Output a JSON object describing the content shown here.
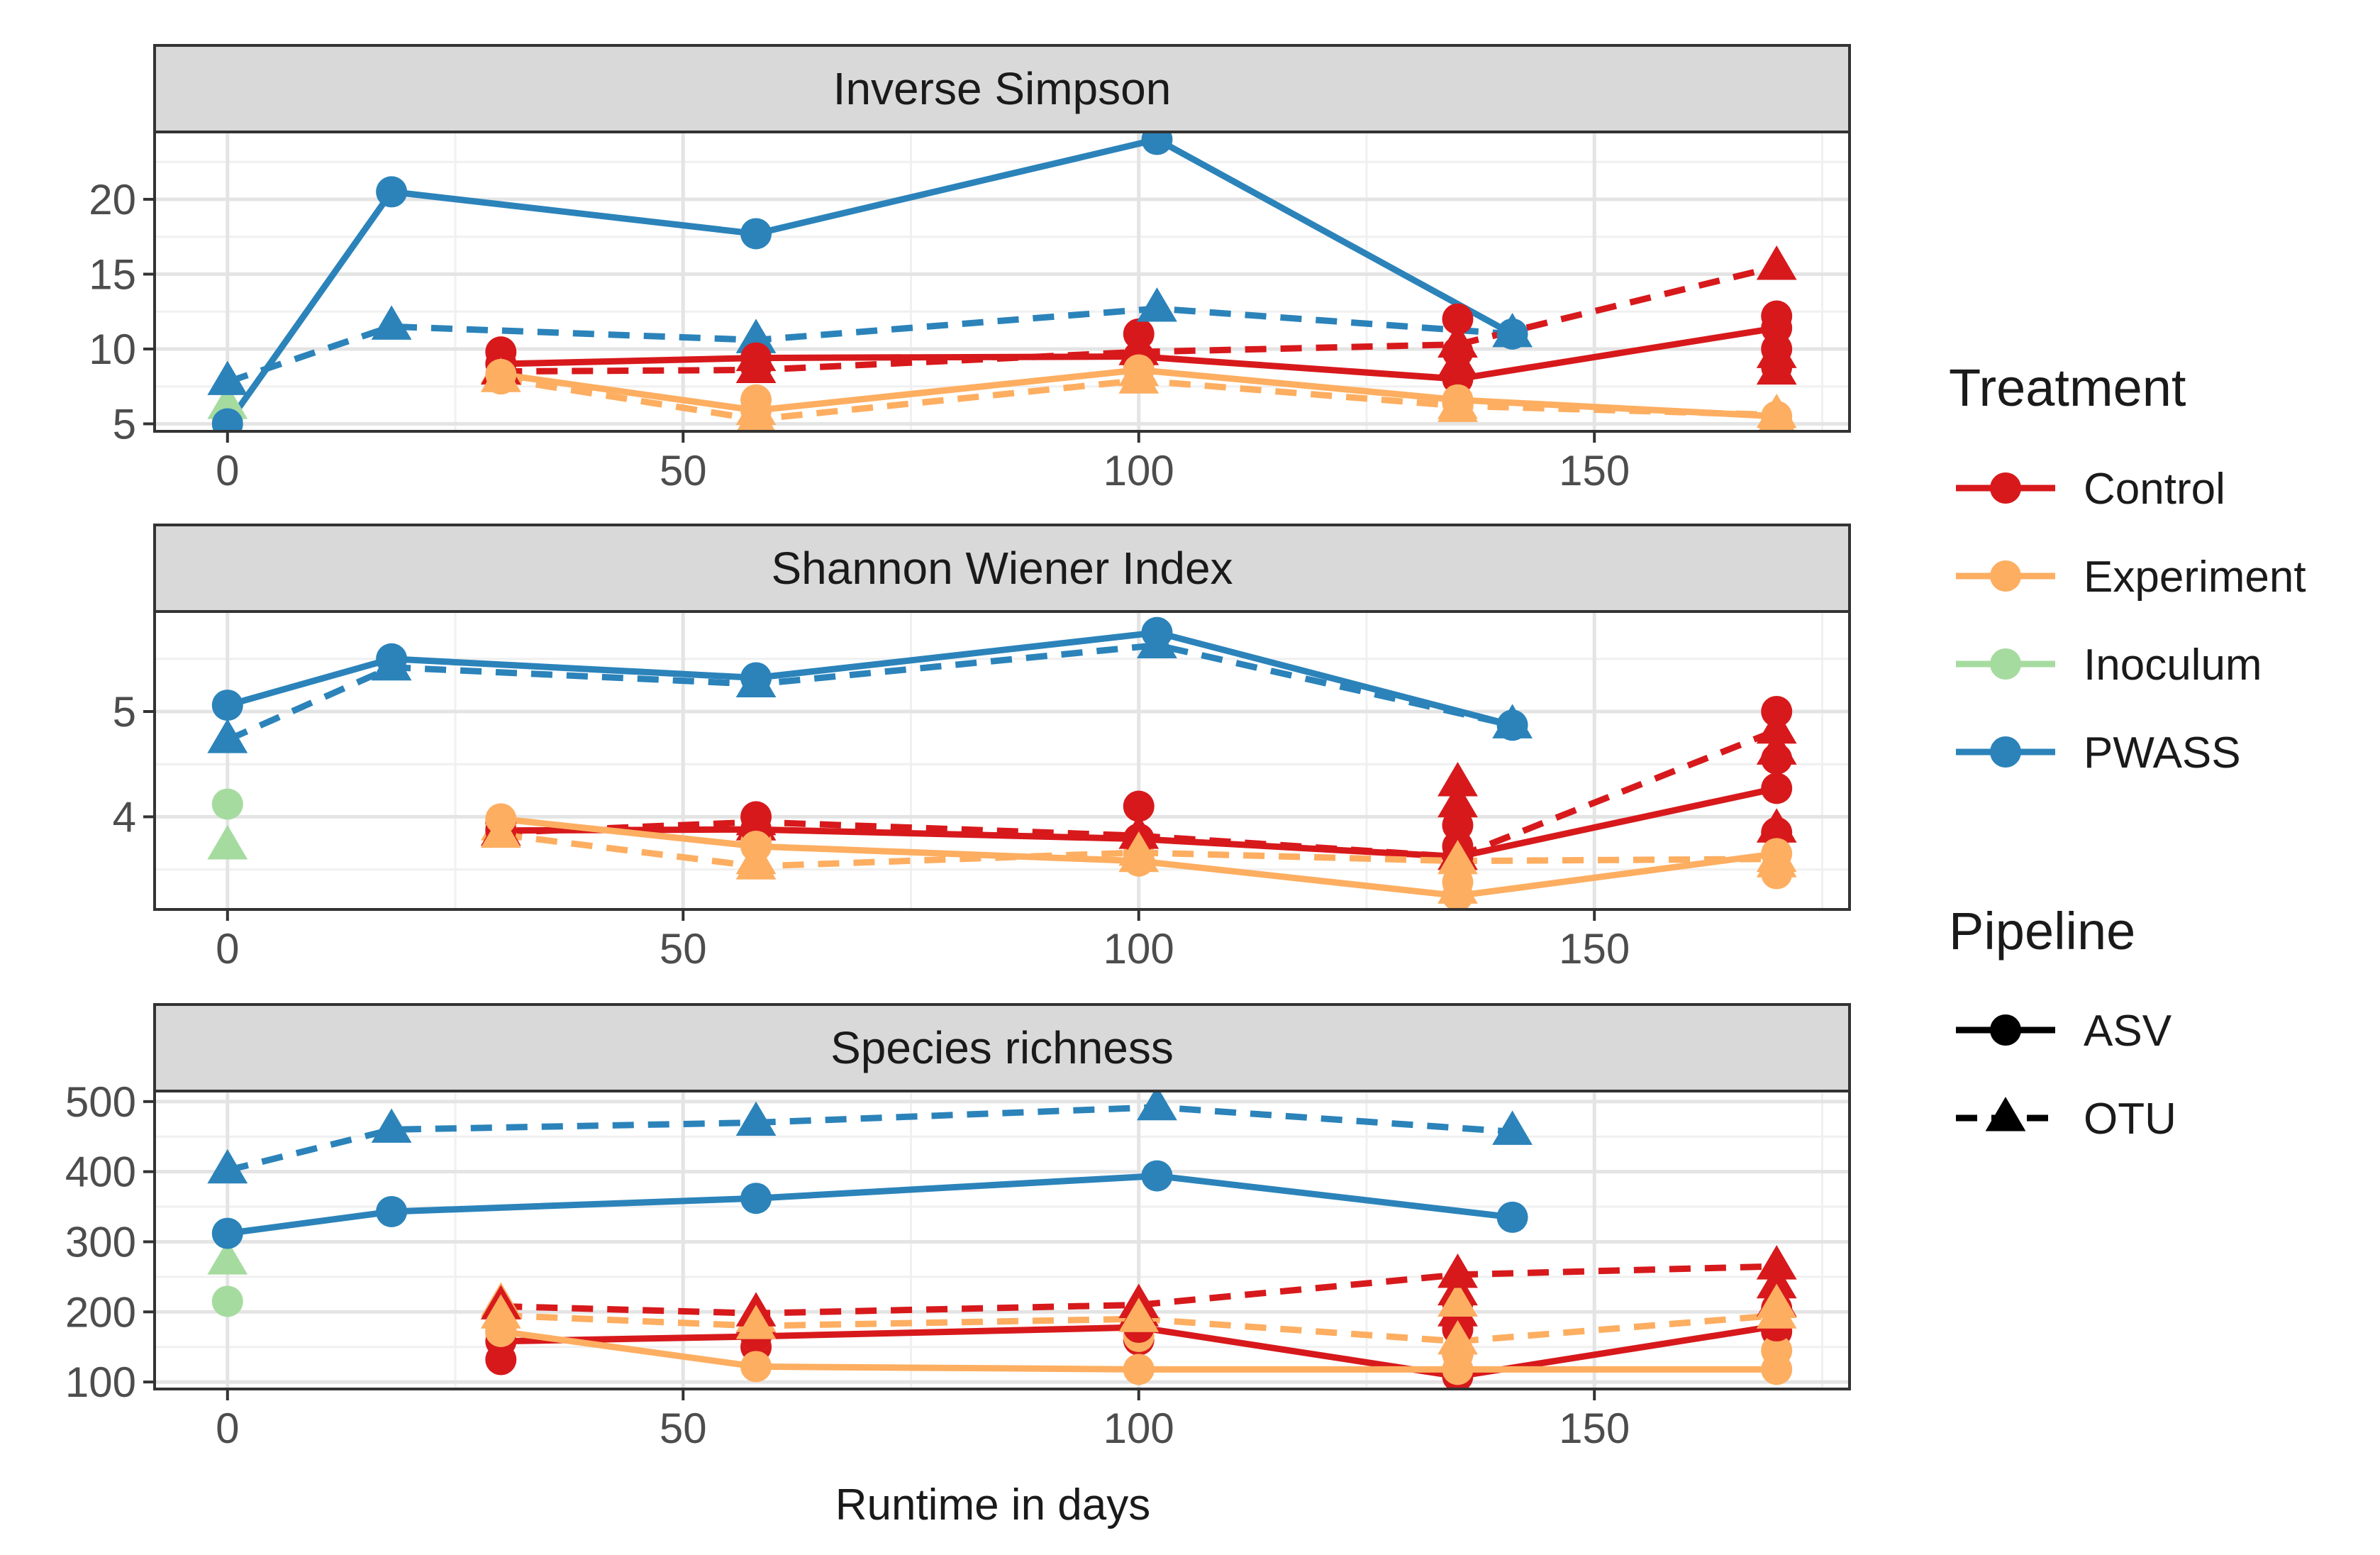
{
  "chart_data": {
    "type": "line",
    "xlabel": "Runtime in days",
    "x_ticks": [
      0,
      50,
      100,
      150
    ],
    "xlim": [
      -8,
      178
    ],
    "colors": {
      "Control": "#d7191c",
      "Experiment": "#fdae61",
      "Inoculum": "#a6dba0",
      "PWASS": "#2b83ba"
    },
    "legend": {
      "placement": "right",
      "treatment_title": "Treatment",
      "treatment_items": [
        "Control",
        "Experiment",
        "Inoculum",
        "PWASS"
      ],
      "pipeline_title": "Pipeline",
      "pipeline_items": [
        {
          "label": "ASV",
          "linetype": "solid",
          "shape": "circle"
        },
        {
          "label": "OTU",
          "linetype": "dashed",
          "shape": "triangle"
        }
      ]
    },
    "panels": [
      {
        "title": "Inverse Simpson",
        "ylim": [
          4.5,
          24.5
        ],
        "y_ticks": [
          5,
          10,
          15,
          20
        ],
        "series": [
          {
            "treatment": "PWASS",
            "pipeline": "ASV",
            "x": [
              0,
              18,
              58,
              102,
              141
            ],
            "y": [
              5.0,
              20.5,
              17.7,
              24.0,
              11.0
            ]
          },
          {
            "treatment": "PWASS",
            "pipeline": "OTU",
            "x": [
              0,
              18,
              58,
              102,
              141
            ],
            "y": [
              7.8,
              11.5,
              10.6,
              12.7,
              11.0
            ]
          },
          {
            "treatment": "Control",
            "pipeline": "ASV",
            "x": [
              30,
              58,
              100,
              135,
              170
            ],
            "y": [
              9.0,
              9.4,
              9.5,
              8.0,
              11.4
            ]
          },
          {
            "treatment": "Control",
            "pipeline": "OTU",
            "x": [
              30,
              58,
              100,
              135,
              170
            ],
            "y": [
              8.5,
              8.6,
              9.8,
              10.3,
              15.5
            ]
          },
          {
            "treatment": "Experiment",
            "pipeline": "ASV",
            "x": [
              30,
              58,
              100,
              135,
              170
            ],
            "y": [
              8.3,
              5.9,
              8.6,
              6.6,
              5.5
            ]
          },
          {
            "treatment": "Experiment",
            "pipeline": "OTU",
            "x": [
              30,
              58,
              100,
              135,
              170
            ],
            "y": [
              8.0,
              5.3,
              7.9,
              6.2,
              5.6
            ]
          }
        ],
        "points": [
          {
            "treatment": "Inoculum",
            "pipeline": "ASV",
            "x": [
              0
            ],
            "y": [
              5.3
            ]
          },
          {
            "treatment": "Inoculum",
            "pipeline": "OTU",
            "x": [
              0
            ],
            "y": [
              6.2
            ]
          },
          {
            "treatment": "Control",
            "pipeline": "ASV",
            "x": [
              30,
              58,
              100,
              100,
              135,
              135,
              170,
              170,
              170
            ],
            "y": [
              9.8,
              8.8,
              11.0,
              9.0,
              12.0,
              9.8,
              12.2,
              10.0,
              8.8
            ]
          },
          {
            "treatment": "Control",
            "pipeline": "OTU",
            "x": [
              58,
              135,
              170,
              170
            ],
            "y": [
              9.4,
              9.0,
              9.6,
              8.5
            ]
          },
          {
            "treatment": "Experiment",
            "pipeline": "ASV",
            "x": [
              30,
              58,
              100,
              135,
              170
            ],
            "y": [
              8.0,
              6.6,
              9.0,
              6.4,
              5.2
            ]
          },
          {
            "treatment": "Experiment",
            "pipeline": "OTU",
            "x": [
              30,
              58,
              100,
              135,
              170
            ],
            "y": [
              8.6,
              5.8,
              8.4,
              6.0,
              5.2
            ]
          }
        ]
      },
      {
        "title": "Shannon Wiener Index",
        "ylim": [
          3.12,
          5.95
        ],
        "y_ticks": [
          4,
          5
        ],
        "series": [
          {
            "treatment": "PWASS",
            "pipeline": "ASV",
            "x": [
              0,
              18,
              58,
              102,
              141
            ],
            "y": [
              5.06,
              5.5,
              5.32,
              5.75,
              4.87
            ]
          },
          {
            "treatment": "PWASS",
            "pipeline": "OTU",
            "x": [
              0,
              18,
              58,
              102,
              141
            ],
            "y": [
              4.73,
              5.42,
              5.26,
              5.63,
              4.87
            ]
          },
          {
            "treatment": "Control",
            "pipeline": "ASV",
            "x": [
              30,
              58,
              100,
              135,
              170
            ],
            "y": [
              3.87,
              3.88,
              3.79,
              3.62,
              4.27
            ]
          },
          {
            "treatment": "Control",
            "pipeline": "OTU",
            "x": [
              30,
              58,
              100,
              135,
              170
            ],
            "y": [
              3.85,
              3.95,
              3.82,
              3.62,
              4.82
            ]
          },
          {
            "treatment": "Experiment",
            "pipeline": "ASV",
            "x": [
              30,
              58,
              100,
              135,
              170
            ],
            "y": [
              3.98,
              3.72,
              3.58,
              3.25,
              3.65
            ]
          },
          {
            "treatment": "Experiment",
            "pipeline": "OTU",
            "x": [
              30,
              58,
              100,
              135,
              170
            ],
            "y": [
              3.83,
              3.53,
              3.66,
              3.58,
              3.6
            ]
          }
        ],
        "points": [
          {
            "treatment": "Inoculum",
            "pipeline": "ASV",
            "x": [
              0
            ],
            "y": [
              4.12
            ]
          },
          {
            "treatment": "Inoculum",
            "pipeline": "OTU",
            "x": [
              0
            ],
            "y": [
              3.72
            ]
          },
          {
            "treatment": "Control",
            "pipeline": "ASV",
            "x": [
              30,
              58,
              58,
              100,
              135,
              135,
              170,
              170,
              170
            ],
            "y": [
              3.94,
              4.0,
              3.86,
              4.1,
              3.92,
              3.72,
              5.0,
              4.55,
              3.85
            ]
          },
          {
            "treatment": "Control",
            "pipeline": "OTU",
            "x": [
              58,
              135,
              135,
              170,
              170
            ],
            "y": [
              3.9,
              4.32,
              4.12,
              4.62,
              3.88
            ]
          },
          {
            "treatment": "Experiment",
            "pipeline": "ASV",
            "x": [
              30,
              58,
              100,
              135,
              170
            ],
            "y": [
              3.9,
              3.76,
              3.65,
              3.38,
              3.46
            ]
          },
          {
            "treatment": "Experiment",
            "pipeline": "OTU",
            "x": [
              30,
              58,
              100,
              135,
              170
            ],
            "y": [
              3.9,
              3.58,
              3.6,
              3.3,
              3.55
            ]
          }
        ]
      },
      {
        "title": "Species richness",
        "ylim": [
          90,
          515
        ],
        "y_ticks": [
          100,
          200,
          300,
          400,
          500
        ],
        "series": [
          {
            "treatment": "PWASS",
            "pipeline": "ASV",
            "x": [
              0,
              18,
              58,
              102,
              141
            ],
            "y": [
              312,
              343,
              362,
              394,
              335
            ]
          },
          {
            "treatment": "PWASS",
            "pipeline": "OTU",
            "x": [
              0,
              18,
              58,
              102,
              141
            ],
            "y": [
              402,
              460,
              470,
              492,
              457
            ]
          },
          {
            "treatment": "Control",
            "pipeline": "ASV",
            "x": [
              30,
              58,
              100,
              135,
              170
            ],
            "y": [
              158,
              165,
              178,
              108,
              180
            ]
          },
          {
            "treatment": "Control",
            "pipeline": "OTU",
            "x": [
              30,
              58,
              100,
              135,
              170
            ],
            "y": [
              208,
              198,
              210,
              253,
              265
            ]
          },
          {
            "treatment": "Experiment",
            "pipeline": "ASV",
            "x": [
              30,
              58,
              100,
              135,
              170
            ],
            "y": [
              172,
              122,
              118,
              118,
              118
            ]
          },
          {
            "treatment": "Experiment",
            "pipeline": "OTU",
            "x": [
              30,
              58,
              100,
              135,
              170
            ],
            "y": [
              195,
              180,
              190,
              158,
              195
            ]
          }
        ],
        "points": [
          {
            "treatment": "Inoculum",
            "pipeline": "ASV",
            "x": [
              0
            ],
            "y": [
              215
            ]
          },
          {
            "treatment": "Inoculum",
            "pipeline": "OTU",
            "x": [
              0
            ],
            "y": [
              272
            ]
          },
          {
            "treatment": "Control",
            "pipeline": "ASV",
            "x": [
              30,
              30,
              58,
              100,
              100,
              135,
              135,
              135,
              170,
              170
            ],
            "y": [
              132,
              172,
              150,
              190,
              160,
              212,
              175,
              140,
              205,
              172
            ]
          },
          {
            "treatment": "Control",
            "pipeline": "OTU",
            "x": [
              58,
              100,
              135,
              135,
              170,
              170
            ],
            "y": [
              188,
              198,
              228,
              198,
              238,
              212
            ]
          },
          {
            "treatment": "Experiment",
            "pipeline": "ASV",
            "x": [
              30,
              58,
              100,
              135,
              170
            ],
            "y": [
              170,
              165,
              165,
              140,
              145
            ]
          },
          {
            "treatment": "Experiment",
            "pipeline": "OTU",
            "x": [
              30,
              58,
              100,
              135,
              170
            ],
            "y": [
              212,
              190,
              205,
              212,
              210
            ]
          }
        ]
      }
    ]
  }
}
